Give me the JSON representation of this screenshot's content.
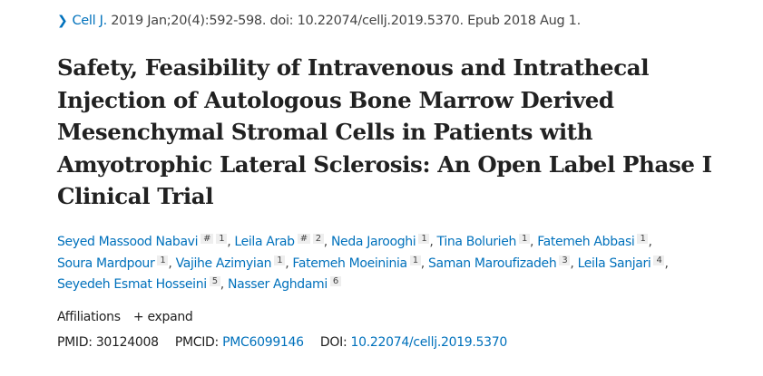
{
  "citation": {
    "journal": "Cell J.",
    "details": "2019 Jan;20(4):592-598. doi: 10.22074/cellj.2019.5370. Epub 2018 Aug 1."
  },
  "title_lines": [
    "Safety, Feasibility of Intravenous and Intrathecal",
    "Injection of Autologous Bone Marrow Derived",
    "Mesenchymal Stromal Cells in Patients with",
    "Amyotrophic Lateral Sclerosis: An Open Label Phase I",
    "Clinical Trial"
  ],
  "author_lines": [
    [
      {
        "name": "Seyed Massood Nabavi",
        "sups": [
          "#",
          "1"
        ]
      },
      {
        "name": "Leila Arab",
        "sups": [
          "#",
          "2"
        ]
      },
      {
        "name": "Neda Jarooghi",
        "sups": [
          "1"
        ]
      },
      {
        "name": "Tina Bolurieh",
        "sups": [
          "1"
        ]
      },
      {
        "name": "Fatemeh Abbasi",
        "sups": [
          "1"
        ]
      }
    ],
    [
      {
        "name": "Soura Mardpour",
        "sups": [
          "1"
        ]
      },
      {
        "name": "Vajihe Azimyian",
        "sups": [
          "1"
        ]
      },
      {
        "name": "Fatemeh Moeininia",
        "sups": [
          "1"
        ]
      },
      {
        "name": "Saman Maroufizadeh",
        "sups": [
          "3"
        ]
      },
      {
        "name": "Leila Sanjari",
        "sups": [
          "4"
        ]
      }
    ],
    [
      {
        "name": "Seyedeh Esmat Hosseini",
        "sups": [
          "5"
        ]
      },
      {
        "name": "Nasser Aghdami",
        "sups": [
          "6"
        ]
      }
    ]
  ],
  "affiliations": {
    "label": "Affiliations",
    "expand": "+ expand"
  },
  "ids": {
    "pmid_label": "PMID:",
    "pmid": "30124008",
    "pmcid_label": "PMCID:",
    "pmcid": "PMC6099146",
    "doi_label": "DOI:",
    "doi": "10.22074/cellj.2019.5370"
  }
}
